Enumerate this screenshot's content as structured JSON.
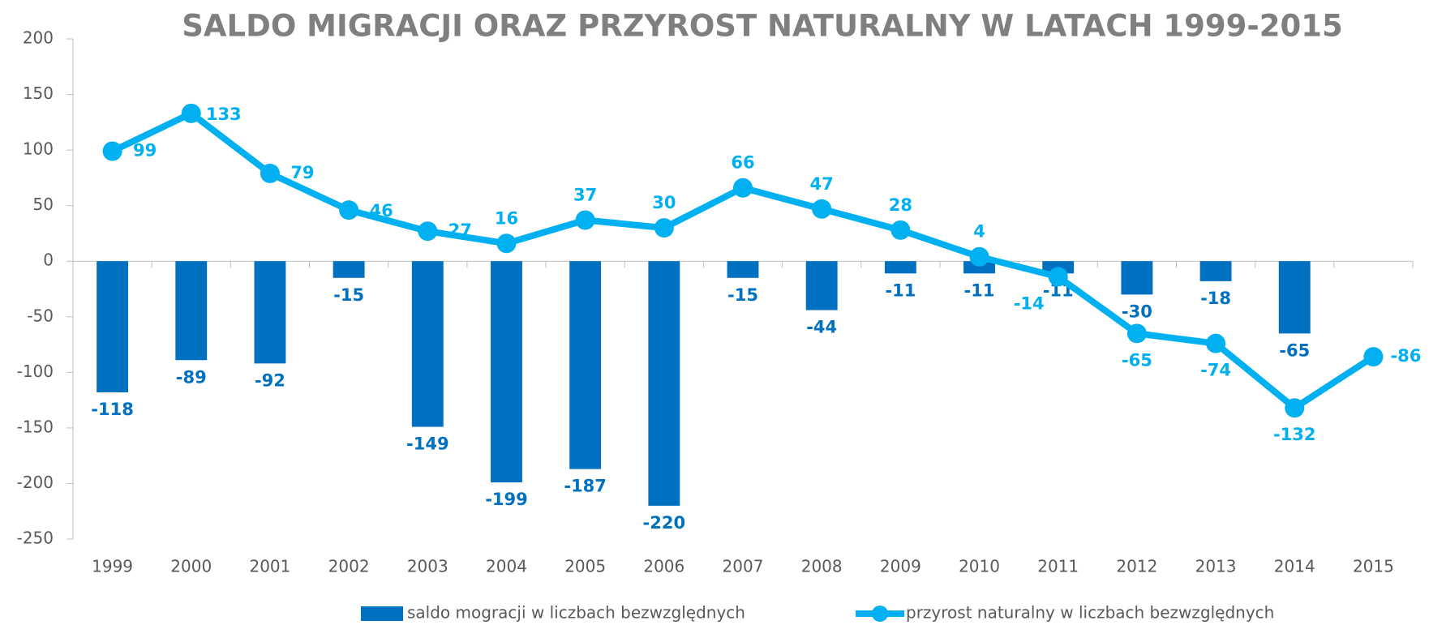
{
  "chart_data": {
    "type": "bar_line",
    "title": "SALDO MIGRACJI ORAZ PRZYROST NATURALNY W LATACH 1999-2015",
    "categories": [
      "1999",
      "2000",
      "2001",
      "2002",
      "2003",
      "2004",
      "2005",
      "2006",
      "2007",
      "2008",
      "2009",
      "2010",
      "2011",
      "2012",
      "2013",
      "2014",
      "2015"
    ],
    "series": [
      {
        "name": "saldo mogracji w liczbach bezwzględnych",
        "type": "bar",
        "color": "#0070c0",
        "values": [
          -118,
          -89,
          -92,
          -15,
          -149,
          -199,
          -187,
          -220,
          -15,
          -44,
          -11,
          -11,
          -11,
          -30,
          -18,
          -65,
          null
        ]
      },
      {
        "name": "przyrost naturalny w liczbach bezwzględnych",
        "type": "line",
        "color": "#00b0f0",
        "values": [
          99,
          133,
          79,
          46,
          27,
          16,
          37,
          30,
          66,
          47,
          28,
          4,
          -14,
          -65,
          -74,
          -132,
          -86
        ]
      }
    ],
    "ylim": [
      -250,
      200
    ],
    "yticks": [
      -250,
      -200,
      -150,
      -100,
      -50,
      0,
      50,
      100,
      150,
      200
    ]
  }
}
